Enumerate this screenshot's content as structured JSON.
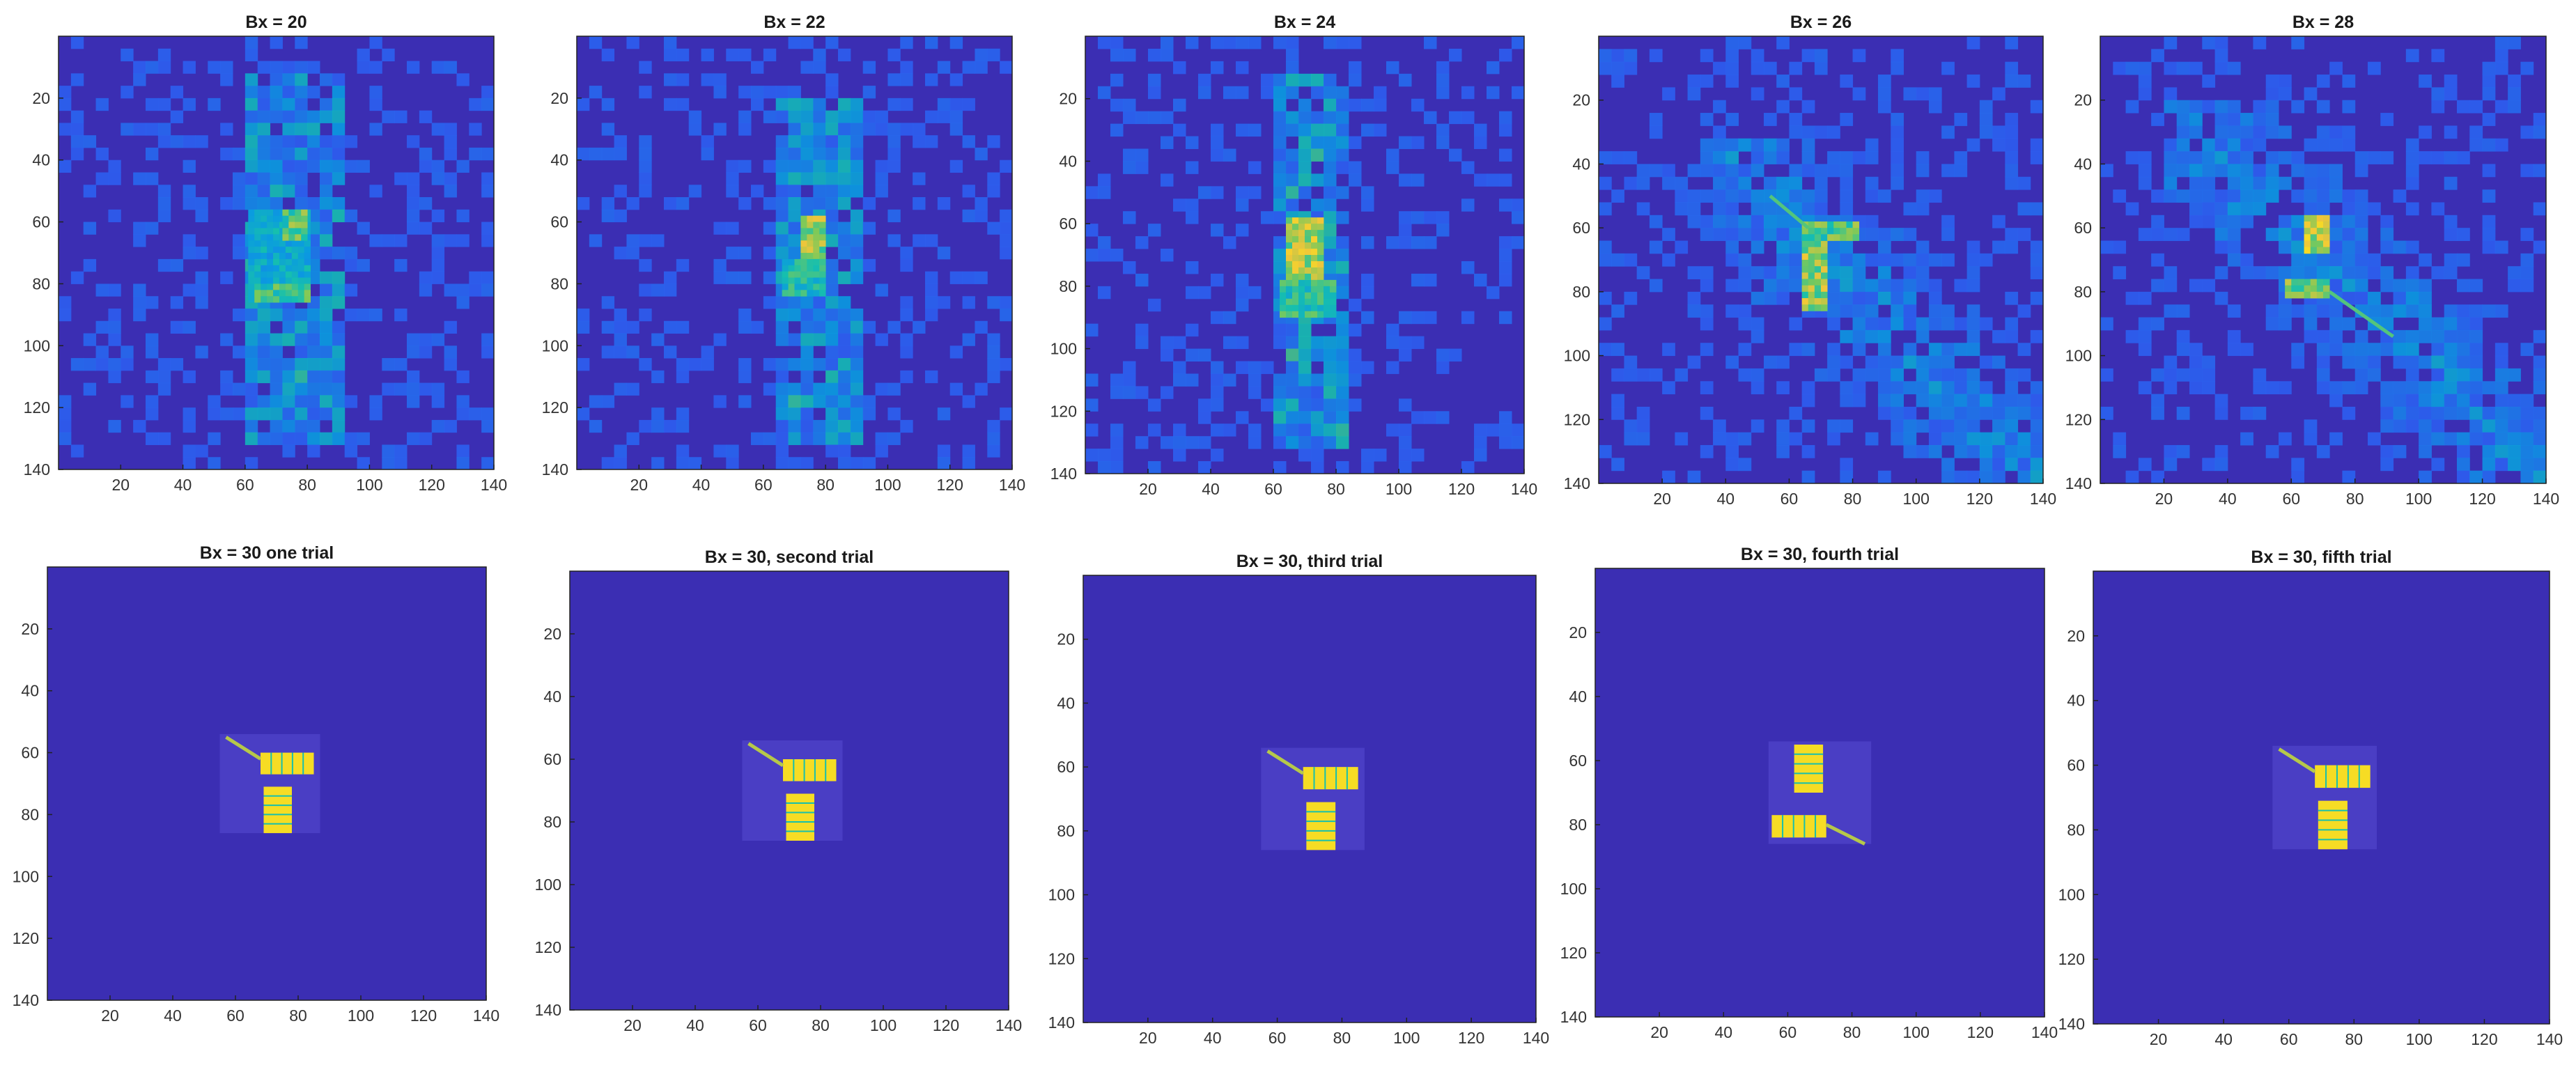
{
  "chart_data": [
    {
      "type": "heatmap",
      "title": "Bx = 20",
      "variant": "diffuse",
      "seed": 11,
      "xlim": [
        0,
        140
      ],
      "ylim": [
        0,
        140
      ],
      "y_reversed": true,
      "xticks": [
        20,
        40,
        60,
        80,
        100,
        120,
        140
      ],
      "yticks": [
        20,
        40,
        60,
        80,
        100,
        120,
        140
      ],
      "background": "#3b2eb3",
      "features": [
        {
          "shape": "rect",
          "x": [
            61,
            80
          ],
          "y": [
            56,
            86
          ],
          "level": 0.5
        },
        {
          "shape": "rect",
          "x": [
            72,
            80
          ],
          "y": [
            56,
            66
          ],
          "level": 0.75
        },
        {
          "shape": "rect",
          "x": [
            63,
            80
          ],
          "y": [
            80,
            86
          ],
          "level": 0.7
        },
        {
          "shape": "band",
          "x": [
            60,
            90
          ],
          "y": [
            10,
            130
          ],
          "level": 0.35
        }
      ]
    },
    {
      "type": "heatmap",
      "title": "Bx = 22",
      "variant": "diffuse",
      "seed": 23,
      "xlim": [
        0,
        140
      ],
      "ylim": [
        0,
        140
      ],
      "y_reversed": true,
      "xticks": [
        20,
        40,
        60,
        80,
        100,
        120,
        140
      ],
      "yticks": [
        20,
        40,
        60,
        80,
        100,
        120,
        140
      ],
      "background": "#3b2eb3",
      "features": [
        {
          "shape": "rect",
          "x": [
            72,
            80
          ],
          "y": [
            58,
            82
          ],
          "level": 0.85
        },
        {
          "shape": "rect",
          "x": [
            66,
            80
          ],
          "y": [
            72,
            84
          ],
          "level": 0.6
        },
        {
          "shape": "band",
          "x": [
            62,
            90
          ],
          "y": [
            20,
            130
          ],
          "level": 0.35
        }
      ]
    },
    {
      "type": "heatmap",
      "title": "Bx = 24",
      "variant": "diffuse",
      "seed": 37,
      "xlim": [
        0,
        140
      ],
      "ylim": [
        0,
        140
      ],
      "y_reversed": true,
      "xticks": [
        20,
        40,
        60,
        80,
        100,
        120,
        140
      ],
      "yticks": [
        20,
        40,
        60,
        80,
        100,
        120,
        140
      ],
      "background": "#3b2eb3",
      "features": [
        {
          "shape": "rect",
          "x": [
            64,
            76
          ],
          "y": [
            58,
            86
          ],
          "level": 0.9
        },
        {
          "shape": "rect",
          "x": [
            62,
            80
          ],
          "y": [
            78,
            90
          ],
          "level": 0.65
        },
        {
          "shape": "band",
          "x": [
            58,
            84
          ],
          "y": [
            10,
            130
          ],
          "level": 0.4
        }
      ]
    },
    {
      "type": "heatmap",
      "title": "Bx = 26",
      "variant": "diffuse",
      "seed": 41,
      "xlim": [
        0,
        140
      ],
      "ylim": [
        0,
        140
      ],
      "y_reversed": true,
      "xticks": [
        20,
        40,
        60,
        80,
        100,
        120,
        140
      ],
      "yticks": [
        20,
        40,
        60,
        80,
        100,
        120,
        140
      ],
      "background": "#3b2eb3",
      "features": [
        {
          "shape": "rect",
          "x": [
            64,
            72
          ],
          "y": [
            62,
            86
          ],
          "level": 0.85
        },
        {
          "shape": "rect",
          "x": [
            64,
            81
          ],
          "y": [
            58,
            64
          ],
          "level": 0.75
        },
        {
          "shape": "line",
          "x": [
            54,
            66
          ],
          "y": [
            50,
            60
          ],
          "level": 0.6
        },
        {
          "shape": "diagonal",
          "x": [
            30,
            140
          ],
          "y": [
            30,
            140
          ],
          "level": 0.25
        }
      ]
    },
    {
      "type": "heatmap",
      "title": "Bx = 28",
      "variant": "diffuse",
      "seed": 53,
      "xlim": [
        0,
        140
      ],
      "ylim": [
        0,
        140
      ],
      "y_reversed": true,
      "xticks": [
        20,
        40,
        60,
        80,
        100,
        120,
        140
      ],
      "yticks": [
        20,
        40,
        60,
        80,
        100,
        120,
        140
      ],
      "background": "#3b2eb3",
      "features": [
        {
          "shape": "rect",
          "x": [
            64,
            72
          ],
          "y": [
            56,
            68
          ],
          "level": 0.95
        },
        {
          "shape": "rect",
          "x": [
            58,
            72
          ],
          "y": [
            76,
            82
          ],
          "level": 0.8
        },
        {
          "shape": "line",
          "x": [
            72,
            92
          ],
          "y": [
            80,
            94
          ],
          "level": 0.6
        },
        {
          "shape": "diagonal",
          "x": [
            20,
            140
          ],
          "y": [
            20,
            140
          ],
          "level": 0.25
        }
      ]
    },
    {
      "type": "heatmap",
      "title": "Bx = 30 one trial",
      "variant": "clean",
      "xlim": [
        0,
        140
      ],
      "ylim": [
        0,
        140
      ],
      "y_reversed": true,
      "xticks": [
        20,
        40,
        60,
        80,
        100,
        120,
        140
      ],
      "yticks": [
        20,
        40,
        60,
        80,
        100,
        120,
        140
      ],
      "background": "#3b2eb3",
      "box": {
        "x": [
          55,
          87
        ],
        "y": [
          54,
          86
        ]
      },
      "panels": [
        {
          "x": [
            68,
            85
          ],
          "y": [
            60,
            67
          ],
          "orient": "h"
        },
        {
          "x": [
            69,
            78
          ],
          "y": [
            71,
            86
          ],
          "orient": "v"
        }
      ],
      "arm": {
        "x": [
          57,
          68
        ],
        "y": [
          55,
          62
        ]
      }
    },
    {
      "type": "heatmap",
      "title": "Bx = 30, second trial",
      "variant": "clean",
      "xlim": [
        0,
        140
      ],
      "ylim": [
        0,
        140
      ],
      "y_reversed": true,
      "xticks": [
        20,
        40,
        60,
        80,
        100,
        120,
        140
      ],
      "yticks": [
        20,
        40,
        60,
        80,
        100,
        120,
        140
      ],
      "background": "#3b2eb3",
      "box": {
        "x": [
          55,
          87
        ],
        "y": [
          54,
          86
        ]
      },
      "panels": [
        {
          "x": [
            68,
            85
          ],
          "y": [
            60,
            67
          ],
          "orient": "h"
        },
        {
          "x": [
            69,
            78
          ],
          "y": [
            71,
            86
          ],
          "orient": "v"
        }
      ],
      "arm": {
        "x": [
          57,
          68
        ],
        "y": [
          55,
          62
        ]
      }
    },
    {
      "type": "heatmap",
      "title": "Bx = 30, third trial",
      "variant": "clean",
      "xlim": [
        0,
        140
      ],
      "ylim": [
        0,
        140
      ],
      "y_reversed": true,
      "xticks": [
        20,
        40,
        60,
        80,
        100,
        120,
        140
      ],
      "yticks": [
        20,
        40,
        60,
        80,
        100,
        120,
        140
      ],
      "background": "#3b2eb3",
      "box": {
        "x": [
          55,
          87
        ],
        "y": [
          54,
          86
        ]
      },
      "panels": [
        {
          "x": [
            68,
            85
          ],
          "y": [
            60,
            67
          ],
          "orient": "h"
        },
        {
          "x": [
            69,
            78
          ],
          "y": [
            71,
            86
          ],
          "orient": "v"
        }
      ],
      "arm": {
        "x": [
          57,
          68
        ],
        "y": [
          55,
          62
        ]
      }
    },
    {
      "type": "heatmap",
      "title": "Bx = 30, fourth trial",
      "variant": "clean",
      "xlim": [
        0,
        140
      ],
      "ylim": [
        0,
        140
      ],
      "y_reversed": true,
      "xticks": [
        20,
        40,
        60,
        80,
        100,
        120,
        140
      ],
      "yticks": [
        20,
        40,
        60,
        80,
        100,
        120,
        140
      ],
      "background": "#3b2eb3",
      "box": {
        "x": [
          54,
          86
        ],
        "y": [
          54,
          86
        ]
      },
      "panels": [
        {
          "x": [
            62,
            71
          ],
          "y": [
            55,
            70
          ],
          "orient": "v"
        },
        {
          "x": [
            55,
            72
          ],
          "y": [
            77,
            84
          ],
          "orient": "h"
        }
      ],
      "arm": {
        "x": [
          72,
          84
        ],
        "y": [
          80,
          86
        ]
      }
    },
    {
      "type": "heatmap",
      "title": "Bx = 30, fifth trial",
      "variant": "clean",
      "xlim": [
        0,
        140
      ],
      "ylim": [
        0,
        140
      ],
      "y_reversed": true,
      "xticks": [
        20,
        40,
        60,
        80,
        100,
        120,
        140
      ],
      "yticks": [
        20,
        40,
        60,
        80,
        100,
        120,
        140
      ],
      "background": "#3b2eb3",
      "box": {
        "x": [
          55,
          87
        ],
        "y": [
          54,
          86
        ]
      },
      "panels": [
        {
          "x": [
            68,
            85
          ],
          "y": [
            60,
            67
          ],
          "orient": "h"
        },
        {
          "x": [
            69,
            78
          ],
          "y": [
            71,
            86
          ],
          "orient": "v"
        }
      ],
      "arm": {
        "x": [
          57,
          68
        ],
        "y": [
          55,
          62
        ]
      }
    }
  ],
  "colormap": [
    "#3e26a8",
    "#2d5ff0",
    "#0a9be0",
    "#16bfae",
    "#7bc95a",
    "#f0c63a",
    "#f9e51a"
  ]
}
